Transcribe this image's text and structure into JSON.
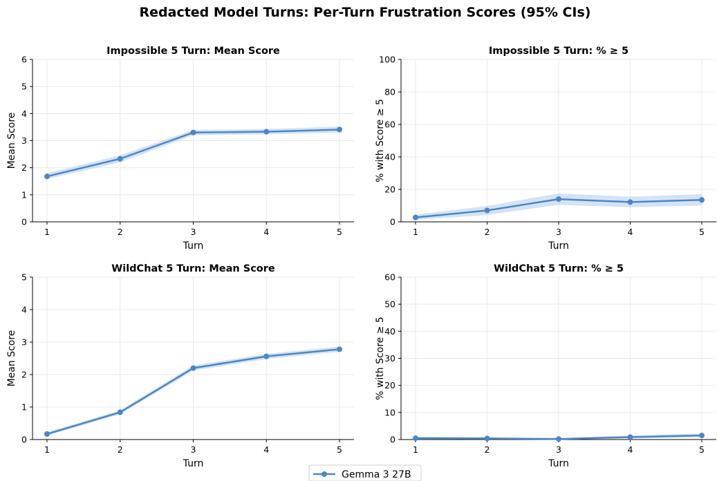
{
  "figure": {
    "title": "Redacted Model Turns: Per-Turn Frustration Scores (95% CIs)",
    "line_color": "#4a86c8",
    "band_color": "#c6d9f0",
    "legend": {
      "placement": "bottom-center",
      "label": "Gemma 3 27B"
    }
  },
  "chart_data": [
    {
      "type": "line",
      "title": "Impossible 5 Turn: Mean Score",
      "xlabel": "Turn",
      "ylabel": "Mean Score",
      "xlim": [
        1,
        5
      ],
      "ylim": [
        0,
        6
      ],
      "xticks": [
        1,
        2,
        3,
        4,
        5
      ],
      "yticks": [
        0,
        1,
        2,
        3,
        4,
        5,
        6
      ],
      "grid": true,
      "series": [
        {
          "name": "Gemma 3 27B",
          "x": [
            1,
            2,
            3,
            4,
            5
          ],
          "values": [
            1.68,
            2.33,
            3.3,
            3.33,
            3.41
          ],
          "ci_low": [
            1.58,
            2.2,
            3.2,
            3.23,
            3.3
          ],
          "ci_high": [
            1.8,
            2.46,
            3.4,
            3.43,
            3.52
          ]
        }
      ]
    },
    {
      "type": "line",
      "title": "Impossible 5 Turn: % ≥ 5",
      "xlabel": "Turn",
      "ylabel": "% with Score ≥ 5",
      "xlim": [
        1,
        5
      ],
      "ylim": [
        0,
        100
      ],
      "xticks": [
        1,
        2,
        3,
        4,
        5
      ],
      "yticks": [
        0,
        20,
        40,
        60,
        80,
        100
      ],
      "grid": true,
      "series": [
        {
          "name": "Gemma 3 27B",
          "x": [
            1,
            2,
            3,
            4,
            5
          ],
          "values": [
            2.7,
            7.0,
            14.0,
            12.2,
            13.5
          ],
          "ci_low": [
            1.2,
            4.2,
            10.5,
            9.0,
            10.0
          ],
          "ci_high": [
            4.5,
            9.8,
            17.5,
            15.5,
            17.0
          ]
        }
      ]
    },
    {
      "type": "line",
      "title": "WildChat 5 Turn: Mean Score",
      "xlabel": "Turn",
      "ylabel": "Mean Score",
      "xlim": [
        1,
        5
      ],
      "ylim": [
        0,
        5
      ],
      "xticks": [
        1,
        2,
        3,
        4,
        5
      ],
      "yticks": [
        0,
        1,
        2,
        3,
        4,
        5
      ],
      "grid": true,
      "series": [
        {
          "name": "Gemma 3 27B",
          "x": [
            1,
            2,
            3,
            4,
            5
          ],
          "values": [
            0.17,
            0.84,
            2.2,
            2.56,
            2.78
          ],
          "ci_low": [
            0.12,
            0.78,
            2.12,
            2.48,
            2.7
          ],
          "ci_high": [
            0.22,
            0.9,
            2.28,
            2.64,
            2.86
          ]
        }
      ]
    },
    {
      "type": "line",
      "title": "WildChat 5 Turn: % ≥ 5",
      "xlabel": "Turn",
      "ylabel": "% with Score ≥ 5",
      "xlim": [
        1,
        5
      ],
      "ylim": [
        0,
        60
      ],
      "xticks": [
        1,
        2,
        3,
        4,
        5
      ],
      "yticks": [
        0,
        10,
        20,
        30,
        40,
        50,
        60
      ],
      "grid": true,
      "series": [
        {
          "name": "Gemma 3 27B",
          "x": [
            1,
            2,
            3,
            4,
            5
          ],
          "values": [
            0.5,
            0.4,
            0.2,
            0.9,
            1.5
          ],
          "ci_low": [
            0.1,
            0.1,
            0.0,
            0.4,
            0.9
          ],
          "ci_high": [
            1.0,
            0.8,
            0.5,
            1.5,
            2.2
          ]
        }
      ]
    }
  ]
}
